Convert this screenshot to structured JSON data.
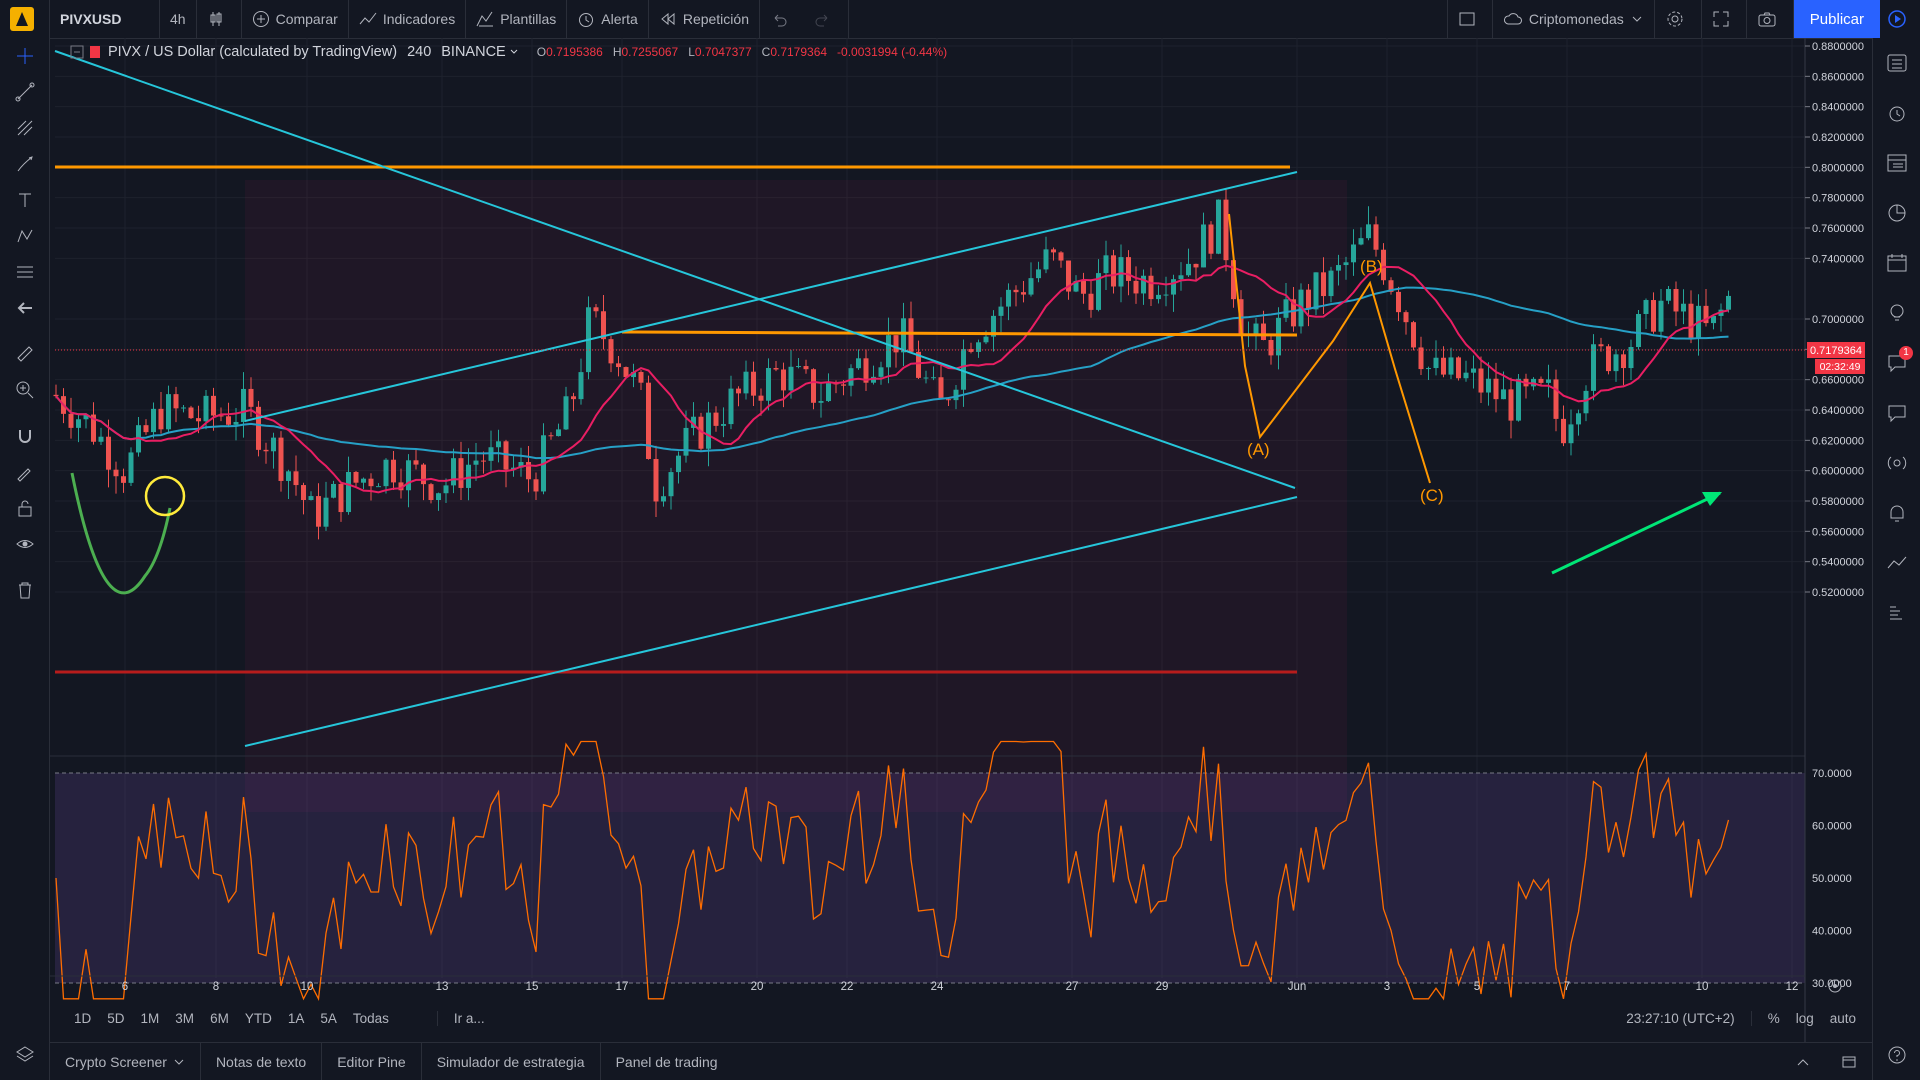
{
  "toolbar": {
    "symbol": "PIVXUSD",
    "interval": "4h",
    "compare": "Comparar",
    "indicators": "Indicadores",
    "templates": "Plantillas",
    "alert": "Alerta",
    "replay": "Repetición",
    "market": "Criptomonedas",
    "publish": "Publicar"
  },
  "legend": {
    "title": "PIVX / US Dollar (calculated by TradingView)",
    "resolution": "240",
    "exchange": "BINANCE",
    "o_label": "O",
    "o": "0.7195386",
    "h_label": "H",
    "h": "0.7255067",
    "l_label": "L",
    "l": "0.7047377",
    "c_label": "C",
    "c": "0.7179364",
    "change": "-0.0031994 (-0.44%)"
  },
  "price_axis": [
    "0.8800000",
    "0.8600000",
    "0.8400000",
    "0.8200000",
    "0.8000000",
    "0.7800000",
    "0.7600000",
    "0.7400000",
    "0.7000000",
    "0.6800000",
    "0.6600000",
    "0.6400000",
    "0.6200000",
    "0.6000000",
    "0.5800000",
    "0.5600000",
    "0.5400000",
    "0.5200000"
  ],
  "current_price": "0.7179364",
  "countdown": "02:32:49",
  "rsi_axis": [
    "70.0000",
    "60.0000",
    "50.0000",
    "40.0000",
    "30.0000"
  ],
  "time_axis": [
    "6",
    "8",
    "10",
    "13",
    "15",
    "17",
    "20",
    "22",
    "24",
    "27",
    "29",
    "Jun",
    "3",
    "5",
    "7",
    "10",
    "12"
  ],
  "wave_labels": [
    "(A)",
    "(B)",
    "(C)"
  ],
  "ranges": [
    "1D",
    "5D",
    "1M",
    "3M",
    "6M",
    "YTD",
    "1A",
    "5A",
    "Todas"
  ],
  "goto": "Ir a...",
  "clock": "23:27:10 (UTC+2)",
  "scale_opts": [
    "%",
    "log",
    "auto"
  ],
  "panels": [
    "Crypto Screener",
    "Notas de texto",
    "Editor Pine",
    "Simulador de estrategia",
    "Panel de trading"
  ],
  "notification_count": "1",
  "colors": {
    "up": "#26a69a",
    "down": "#ef5350",
    "orange": "#ff9800",
    "cyan": "#26c6da",
    "ma_pink": "#e91e63",
    "ma_blue": "#2196f3",
    "rsi": "#ff6d00",
    "rsi_bg": "#2a1e4a"
  }
}
